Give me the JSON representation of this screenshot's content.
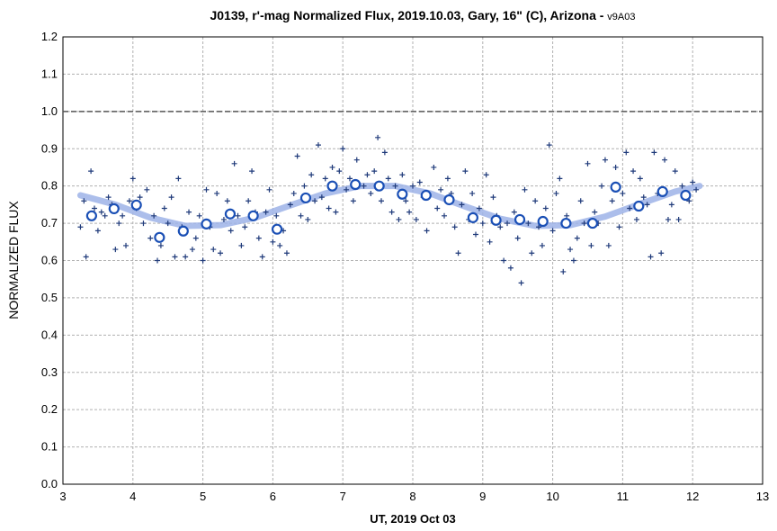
{
  "chart_data": {
    "type": "scatter",
    "title": "J0139, r'-mag Normalized Flux, 2019.10.03, Gary, 16\" (C), Arizona - ",
    "subtitle": "v9A03",
    "xlabel": "UT, 2019 Oct 03",
    "ylabel": "NORMALIZED FLUX",
    "xlim": [
      3,
      13
    ],
    "xticks": [
      3,
      4,
      5,
      6,
      7,
      8,
      9,
      10,
      11,
      12,
      13
    ],
    "ylim": [
      0,
      1.2
    ],
    "yticks": [
      {
        "value": 0,
        "label": "0.0"
      },
      0.1,
      0.2,
      0.3,
      0.4,
      0.5,
      0.6,
      0.7,
      0.8,
      0.9,
      {
        "value": 1,
        "label": "1.0"
      },
      1.1,
      1.2
    ],
    "grid": true,
    "hline": 1,
    "points": {
      "color": "#1f3a7a",
      "x": [
        3.25,
        3.3,
        3.33,
        3.38,
        3.4,
        3.45,
        3.5,
        3.55,
        3.6,
        3.65,
        3.7,
        3.75,
        3.8,
        3.85,
        3.9,
        3.95,
        4.0,
        4.05,
        4.1,
        4.15,
        4.2,
        4.25,
        4.3,
        4.35,
        4.4,
        4.45,
        4.5,
        4.55,
        4.6,
        4.65,
        4.7,
        4.75,
        4.8,
        4.85,
        4.9,
        4.95,
        5.0,
        5.05,
        5.1,
        5.15,
        5.2,
        5.25,
        5.3,
        5.35,
        5.4,
        5.45,
        5.5,
        5.55,
        5.6,
        5.65,
        5.7,
        5.75,
        5.8,
        5.85,
        5.9,
        5.95,
        6.0,
        6.05,
        6.1,
        6.15,
        6.2,
        6.25,
        6.3,
        6.35,
        6.4,
        6.45,
        6.5,
        6.55,
        6.6,
        6.65,
        6.7,
        6.75,
        6.8,
        6.85,
        6.9,
        6.95,
        7.0,
        7.05,
        7.1,
        7.15,
        7.2,
        7.3,
        7.35,
        7.4,
        7.45,
        7.5,
        7.55,
        7.6,
        7.65,
        7.7,
        7.75,
        7.8,
        7.85,
        7.9,
        7.95,
        8.0,
        8.05,
        8.1,
        8.15,
        8.2,
        8.3,
        8.35,
        8.4,
        8.45,
        8.5,
        8.55,
        8.6,
        8.65,
        8.7,
        8.75,
        8.8,
        8.85,
        8.9,
        8.95,
        9.0,
        9.05,
        9.1,
        9.15,
        9.2,
        9.25,
        9.3,
        9.35,
        9.4,
        9.45,
        9.5,
        9.55,
        9.6,
        9.65,
        9.7,
        9.75,
        9.8,
        9.85,
        9.9,
        9.95,
        10.0,
        10.05,
        10.1,
        10.15,
        10.2,
        10.25,
        10.3,
        10.35,
        10.4,
        10.45,
        10.5,
        10.55,
        10.6,
        10.65,
        10.7,
        10.75,
        10.8,
        10.85,
        10.9,
        10.95,
        11.0,
        11.05,
        11.1,
        11.15,
        11.2,
        11.25,
        11.3,
        11.35,
        11.4,
        11.45,
        11.5,
        11.55,
        11.6,
        11.65,
        11.7,
        11.75,
        11.8,
        11.85,
        11.9,
        11.95,
        12.0,
        12.05
      ],
      "y": [
        0.69,
        0.76,
        0.61,
        0.72,
        0.84,
        0.74,
        0.68,
        0.73,
        0.72,
        0.77,
        0.75,
        0.63,
        0.7,
        0.72,
        0.64,
        0.76,
        0.82,
        0.74,
        0.77,
        0.7,
        0.79,
        0.66,
        0.72,
        0.6,
        0.64,
        0.74,
        0.7,
        0.77,
        0.61,
        0.82,
        0.69,
        0.61,
        0.73,
        0.63,
        0.66,
        0.72,
        0.6,
        0.79,
        0.69,
        0.63,
        0.78,
        0.62,
        0.71,
        0.76,
        0.68,
        0.86,
        0.72,
        0.64,
        0.69,
        0.76,
        0.84,
        0.73,
        0.66,
        0.61,
        0.73,
        0.79,
        0.65,
        0.72,
        0.64,
        0.68,
        0.62,
        0.75,
        0.78,
        0.88,
        0.72,
        0.8,
        0.71,
        0.83,
        0.76,
        0.91,
        0.77,
        0.82,
        0.74,
        0.85,
        0.73,
        0.84,
        0.9,
        0.79,
        0.82,
        0.76,
        0.87,
        0.8,
        0.83,
        0.78,
        0.84,
        0.93,
        0.76,
        0.89,
        0.82,
        0.73,
        0.8,
        0.71,
        0.83,
        0.76,
        0.73,
        0.8,
        0.71,
        0.81,
        0.77,
        0.68,
        0.85,
        0.74,
        0.79,
        0.72,
        0.82,
        0.78,
        0.69,
        0.62,
        0.75,
        0.84,
        0.71,
        0.78,
        0.67,
        0.74,
        0.7,
        0.83,
        0.65,
        0.77,
        0.72,
        0.69,
        0.6,
        0.7,
        0.58,
        0.73,
        0.66,
        0.54,
        0.79,
        0.7,
        0.62,
        0.76,
        0.69,
        0.64,
        0.74,
        0.91,
        0.68,
        0.78,
        0.82,
        0.57,
        0.72,
        0.63,
        0.6,
        0.66,
        0.76,
        0.7,
        0.86,
        0.64,
        0.73,
        0.7,
        0.8,
        0.87,
        0.64,
        0.76,
        0.85,
        0.69,
        0.78,
        0.89,
        0.74,
        0.84,
        0.71,
        0.82,
        0.77,
        0.75,
        0.61,
        0.89,
        0.78,
        0.62,
        0.87,
        0.71,
        0.75,
        0.84,
        0.71,
        0.8,
        0.77,
        0.76,
        0.81,
        0.79
      ]
    },
    "means": {
      "color": "#1a4fb5",
      "x": [
        3.41,
        3.73,
        4.05,
        4.38,
        4.72,
        5.05,
        5.39,
        5.72,
        6.06,
        6.47,
        6.85,
        7.18,
        7.52,
        7.85,
        8.19,
        8.52,
        8.86,
        9.19,
        9.53,
        9.86,
        10.19,
        10.57,
        10.9,
        11.23,
        11.57,
        11.9
      ],
      "y": [
        0.72,
        0.739,
        0.749,
        0.662,
        0.679,
        0.698,
        0.725,
        0.72,
        0.684,
        0.768,
        0.8,
        0.804,
        0.8,
        0.778,
        0.775,
        0.763,
        0.715,
        0.708,
        0.71,
        0.705,
        0.7,
        0.7,
        0.797,
        0.746,
        0.785,
        0.775
      ]
    },
    "fit": {
      "color": "#9db3e8",
      "x": [
        3.25,
        3.75,
        4.25,
        4.75,
        5.25,
        5.75,
        6.25,
        6.75,
        7.25,
        7.75,
        8.25,
        8.75,
        9.25,
        9.75,
        10.25,
        10.75,
        11.25,
        11.75,
        12.1
      ],
      "y": [
        0.775,
        0.75,
        0.715,
        0.693,
        0.695,
        0.715,
        0.748,
        0.78,
        0.8,
        0.8,
        0.78,
        0.745,
        0.712,
        0.693,
        0.695,
        0.718,
        0.752,
        0.785,
        0.8
      ]
    }
  }
}
